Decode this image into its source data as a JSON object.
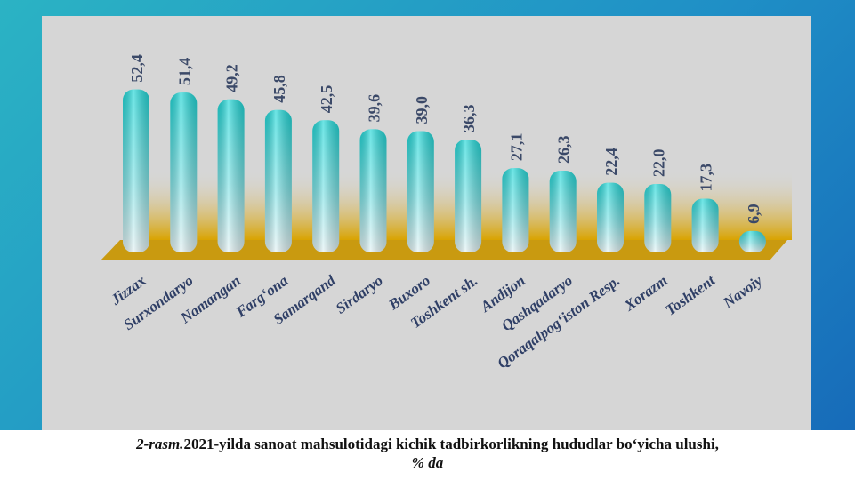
{
  "chart_data": {
    "type": "bar",
    "categories": [
      "Jizzax",
      "Surxondaryo",
      "Namangan",
      "Farg‘ona",
      "Samarqand",
      "Sirdaryo",
      "Buxoro",
      "Toshkent sh.",
      "Andijon",
      "Qashqadaryo",
      "Qoraqalpog‘iston Resp.",
      "Xorazm",
      "Toshkent",
      "Navoiy"
    ],
    "values": [
      52.4,
      51.4,
      49.2,
      45.8,
      42.5,
      39.6,
      39.0,
      36.3,
      27.1,
      26.3,
      22.4,
      22.0,
      17.3,
      6.9
    ],
    "value_labels": [
      "52,4",
      "51,4",
      "49,2",
      "45,8",
      "42,5",
      "39,6",
      "39,0",
      "36,3",
      "27,1",
      "26,3",
      "22,4",
      "22,0",
      "17,3",
      "6,9"
    ]
  },
  "caption": {
    "label": "2-rasm.",
    "text": "2021-yilda sanoat mahsulotidagi kichik tadbirkorlikning hududlar bo‘yicha ulushi,",
    "unit": "% da"
  }
}
